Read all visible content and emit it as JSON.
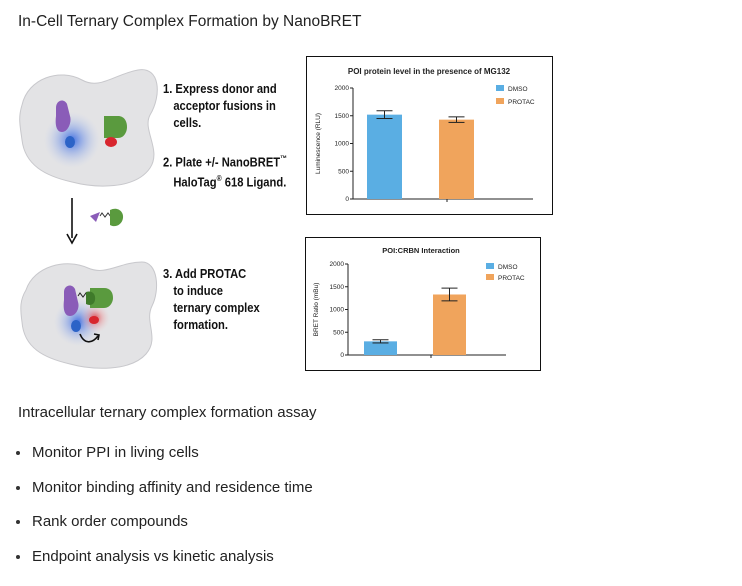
{
  "header": {
    "title": "In-Cell Ternary Complex Formation by NanoBRET"
  },
  "steps": {
    "step1": [
      "1. Express donor and",
      "acceptor fusions in",
      "cells."
    ],
    "step2": [
      "2. Plate +/- NanoBRET",
      "HaloTag",
      " 618 Ligand."
    ],
    "step2_marks": {
      "tm": "™",
      "reg": "®"
    },
    "step3": [
      "3. Add PROTAC",
      "to induce",
      "ternary complex",
      "formation."
    ]
  },
  "colors": {
    "dmso": "#5aaee3",
    "protac": "#f0a45c",
    "cell": "#e4e4e6",
    "donor_purple": "#8a5cb8",
    "acceptor_green": "#5a9a3e",
    "blue_glow": "#3a6fd8",
    "red_glow": "#d8262e"
  },
  "icons": [
    "cell-illustration",
    "nanoluc-donor",
    "halotag-acceptor",
    "protac-molecule",
    "down-arrow"
  ],
  "chart_data": [
    {
      "type": "bar",
      "title": "POI protein level in the presence of MG132",
      "categories": [
        "DMSO",
        "PROTAC"
      ],
      "values": [
        1520,
        1430
      ],
      "errors": [
        70,
        50
      ],
      "ylabel": "Luminescence (RLU)",
      "xlabel": "",
      "ylim": [
        0,
        2000
      ],
      "yticks": [
        0,
        500,
        1000,
        1500,
        2000
      ],
      "legend": [
        "DMSO",
        "PROTAC"
      ],
      "legend_position": "top-right",
      "grid": false
    },
    {
      "type": "bar",
      "title": "POI:CRBN Interaction",
      "categories": [
        "DMSO",
        "PROTAC"
      ],
      "values": [
        300,
        1330
      ],
      "errors": [
        35,
        140
      ],
      "ylabel": "BRET Ratio (mBu)",
      "xlabel": "",
      "ylim": [
        0,
        2000
      ],
      "yticks": [
        0,
        500,
        1000,
        1500,
        2000
      ],
      "legend": [
        "DMSO",
        "PROTAC"
      ],
      "legend_position": "top-right",
      "grid": false
    }
  ],
  "assay": {
    "heading": "Intracellular ternary complex formation assay",
    "bullets": [
      "Monitor PPI in living cells",
      "Monitor binding affinity and residence time",
      "Rank order compounds",
      "Endpoint analysis vs kinetic analysis"
    ]
  }
}
